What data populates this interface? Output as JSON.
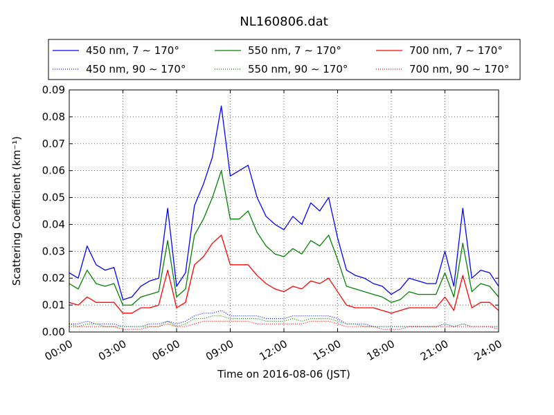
{
  "chart_data": {
    "type": "line",
    "title": "NL160806.dat",
    "xlabel": "Time on 2016-08-06 (JST)",
    "ylabel": "Scattering Coefficient (km⁻¹)",
    "x_unit": "hours",
    "xlim": [
      0,
      24
    ],
    "ylim": [
      0,
      0.09
    ],
    "x_ticks": [
      0,
      3,
      6,
      9,
      12,
      15,
      18,
      21,
      24
    ],
    "x_tick_labels": [
      "00:00",
      "03:00",
      "06:00",
      "09:00",
      "12:00",
      "15:00",
      "18:00",
      "21:00",
      "24:00"
    ],
    "y_ticks": [
      0,
      0.01,
      0.02,
      0.03,
      0.04,
      0.05,
      0.06,
      0.07,
      0.08,
      0.09
    ],
    "y_tick_labels": [
      "0.00",
      "0.01",
      "0.02",
      "0.03",
      "0.04",
      "0.05",
      "0.06",
      "0.07",
      "0.08",
      "0.09"
    ],
    "grid": true,
    "legend_position": "top",
    "x": [
      0,
      0.5,
      1,
      1.5,
      2,
      2.5,
      3,
      3.5,
      4,
      4.5,
      5,
      5.5,
      6,
      6.5,
      7,
      7.5,
      8,
      8.5,
      9,
      9.5,
      10,
      10.5,
      11,
      11.5,
      12,
      12.5,
      13,
      13.5,
      14,
      14.5,
      15,
      15.5,
      16,
      16.5,
      17,
      17.5,
      18,
      18.5,
      19,
      19.5,
      20,
      20.5,
      21,
      21.5,
      22,
      22.5,
      23,
      23.5,
      24
    ],
    "series": [
      {
        "name": "450 nm, 7 ∼ 170°",
        "color": "#0000ff",
        "style": "solid",
        "values": [
          0.022,
          0.02,
          0.032,
          0.025,
          0.023,
          0.024,
          0.012,
          0.013,
          0.017,
          0.019,
          0.02,
          0.046,
          0.017,
          0.022,
          0.047,
          0.055,
          0.065,
          0.084,
          0.058,
          0.06,
          0.062,
          0.05,
          0.043,
          0.04,
          0.038,
          0.043,
          0.04,
          0.048,
          0.045,
          0.05,
          0.035,
          0.023,
          0.021,
          0.02,
          0.018,
          0.017,
          0.014,
          0.016,
          0.02,
          0.019,
          0.018,
          0.018,
          0.03,
          0.017,
          0.046,
          0.02,
          0.023,
          0.022,
          0.017
        ]
      },
      {
        "name": "450 nm, 90 ∼ 170°",
        "color": "#0000ff",
        "style": "dotted",
        "values": [
          0.003,
          0.003,
          0.004,
          0.003,
          0.003,
          0.003,
          0.002,
          0.002,
          0.002,
          0.003,
          0.003,
          0.004,
          0.003,
          0.004,
          0.006,
          0.007,
          0.007,
          0.008,
          0.006,
          0.006,
          0.006,
          0.006,
          0.005,
          0.005,
          0.005,
          0.006,
          0.006,
          0.006,
          0.006,
          0.006,
          0.005,
          0.003,
          0.003,
          0.003,
          0.002,
          0.002,
          0.002,
          0.002,
          0.002,
          0.002,
          0.002,
          0.002,
          0.003,
          0.002,
          0.003,
          0.002,
          0.002,
          0.002,
          0.002
        ]
      },
      {
        "name": "550 nm, 7 ∼ 170°",
        "color": "#008000",
        "style": "solid",
        "values": [
          0.018,
          0.016,
          0.023,
          0.018,
          0.017,
          0.018,
          0.01,
          0.01,
          0.013,
          0.014,
          0.015,
          0.034,
          0.013,
          0.016,
          0.036,
          0.042,
          0.05,
          0.06,
          0.042,
          0.042,
          0.045,
          0.037,
          0.032,
          0.029,
          0.028,
          0.031,
          0.029,
          0.034,
          0.032,
          0.036,
          0.027,
          0.017,
          0.016,
          0.015,
          0.014,
          0.013,
          0.011,
          0.012,
          0.015,
          0.014,
          0.014,
          0.014,
          0.022,
          0.013,
          0.033,
          0.015,
          0.018,
          0.017,
          0.013
        ]
      },
      {
        "name": "550 nm, 90 ∼ 170°",
        "color": "#008000",
        "style": "dotted",
        "values": [
          0.003,
          0.002,
          0.003,
          0.003,
          0.002,
          0.002,
          0.002,
          0.002,
          0.002,
          0.002,
          0.002,
          0.004,
          0.002,
          0.003,
          0.005,
          0.005,
          0.006,
          0.006,
          0.005,
          0.005,
          0.005,
          0.005,
          0.004,
          0.004,
          0.004,
          0.005,
          0.004,
          0.005,
          0.005,
          0.005,
          0.004,
          0.003,
          0.003,
          0.002,
          0.002,
          0.002,
          0.002,
          0.002,
          0.002,
          0.002,
          0.002,
          0.002,
          0.003,
          0.002,
          0.003,
          0.002,
          0.002,
          0.002,
          0.002
        ]
      },
      {
        "name": "700 nm, 7 ∼ 170°",
        "color": "#ff0000",
        "style": "solid",
        "values": [
          0.011,
          0.01,
          0.013,
          0.011,
          0.011,
          0.011,
          0.007,
          0.007,
          0.009,
          0.009,
          0.01,
          0.023,
          0.009,
          0.011,
          0.025,
          0.028,
          0.033,
          0.036,
          0.025,
          0.025,
          0.025,
          0.021,
          0.018,
          0.016,
          0.015,
          0.017,
          0.016,
          0.019,
          0.018,
          0.02,
          0.015,
          0.01,
          0.009,
          0.009,
          0.009,
          0.008,
          0.007,
          0.008,
          0.009,
          0.009,
          0.009,
          0.009,
          0.013,
          0.008,
          0.021,
          0.009,
          0.011,
          0.011,
          0.008
        ]
      },
      {
        "name": "700 nm, 90 ∼ 170°",
        "color": "#ff0000",
        "style": "dotted",
        "values": [
          0.002,
          0.002,
          0.002,
          0.002,
          0.002,
          0.002,
          0.001,
          0.001,
          0.001,
          0.002,
          0.002,
          0.003,
          0.002,
          0.002,
          0.003,
          0.004,
          0.004,
          0.004,
          0.004,
          0.004,
          0.004,
          0.003,
          0.003,
          0.003,
          0.003,
          0.003,
          0.003,
          0.004,
          0.004,
          0.004,
          0.003,
          0.002,
          0.002,
          0.002,
          0.002,
          0.001,
          0.001,
          0.001,
          0.002,
          0.002,
          0.002,
          0.002,
          0.002,
          0.002,
          0.002,
          0.002,
          0.002,
          0.002,
          0.001
        ]
      }
    ]
  }
}
